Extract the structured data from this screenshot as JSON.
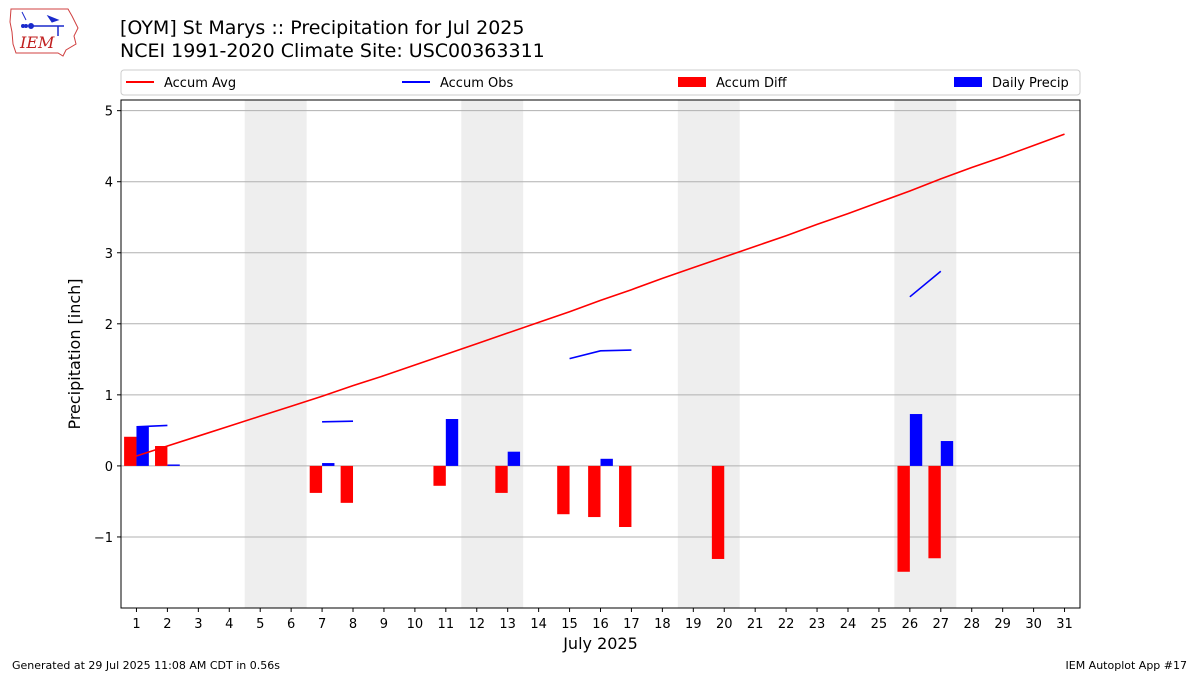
{
  "header": {
    "title_line1": "[OYM] St Marys :: Precipitation for Jul 2025",
    "title_line2": "NCEI 1991-2020 Climate Site: USC00363311",
    "logo_text": "IEM"
  },
  "footer": {
    "left": "Generated at 29 Jul 2025 11:08 AM CDT in 0.56s",
    "right": "IEM Autoplot App #17"
  },
  "colors": {
    "accum_avg": "#ff0000",
    "accum_obs": "#0000ff",
    "accum_diff": "#ff0000",
    "daily_precip": "#0000ff",
    "weekend_shade": "#eeeeee",
    "grid": "#b0b0b0"
  },
  "chart_data": {
    "type": "bar",
    "xlabel": "July 2025",
    "ylabel": "Precipitation [inch]",
    "xlim": [
      0.5,
      31.5
    ],
    "ylim": [
      -2.0,
      5.15
    ],
    "yticks": [
      -1,
      0,
      1,
      2,
      3,
      4,
      5
    ],
    "ytick_labels": [
      "−1",
      "0",
      "1",
      "2",
      "3",
      "4",
      "5"
    ],
    "x": [
      1,
      2,
      3,
      4,
      5,
      6,
      7,
      8,
      9,
      10,
      11,
      12,
      13,
      14,
      15,
      16,
      17,
      18,
      19,
      20,
      21,
      22,
      23,
      24,
      25,
      26,
      27,
      28,
      29,
      30,
      31
    ],
    "grid": "horizontal",
    "legend_position": "top",
    "legend": [
      "Accum Avg",
      "Accum Obs",
      "Accum Diff",
      "Daily Precip"
    ],
    "weekend_days": [
      [
        5,
        6
      ],
      [
        12,
        13
      ],
      [
        19,
        20
      ],
      [
        26,
        27
      ]
    ],
    "series": [
      {
        "name": "Accum Avg",
        "type": "line",
        "x": [
          1,
          2,
          3,
          4,
          5,
          6,
          7,
          8,
          9,
          10,
          11,
          12,
          13,
          14,
          15,
          16,
          17,
          18,
          19,
          20,
          21,
          22,
          23,
          24,
          25,
          26,
          27,
          28,
          29,
          30,
          31
        ],
        "values": [
          0.14,
          0.28,
          0.42,
          0.56,
          0.7,
          0.84,
          0.98,
          1.13,
          1.27,
          1.42,
          1.57,
          1.72,
          1.87,
          2.02,
          2.17,
          2.33,
          2.48,
          2.64,
          2.79,
          2.94,
          3.09,
          3.24,
          3.4,
          3.55,
          3.71,
          3.87,
          4.04,
          4.2,
          4.35,
          4.51,
          4.67
        ]
      },
      {
        "name": "Accum Obs",
        "type": "line",
        "segments": [
          {
            "x": [
              1,
              2
            ],
            "values": [
              0.55,
              0.57
            ]
          },
          {
            "x": [
              7,
              8
            ],
            "values": [
              0.62,
              0.63
            ]
          },
          {
            "x": [
              15,
              16,
              17
            ],
            "values": [
              1.51,
              1.62,
              1.63
            ]
          },
          {
            "x": [
              26,
              27
            ],
            "values": [
              2.38,
              2.74
            ]
          }
        ]
      },
      {
        "name": "Accum Diff",
        "type": "bar",
        "x": [
          1,
          2,
          7,
          8,
          11,
          13,
          15,
          16,
          17,
          20,
          26,
          27
        ],
        "values": [
          0.41,
          0.28,
          -0.38,
          -0.52,
          -0.28,
          -0.38,
          -0.68,
          -0.72,
          -0.86,
          -1.31,
          -1.49,
          -1.3
        ]
      },
      {
        "name": "Daily Precip",
        "type": "bar",
        "x": [
          1,
          2,
          7,
          11,
          13,
          16,
          26,
          27
        ],
        "values": [
          0.55,
          0.02,
          0.04,
          0.66,
          0.2,
          0.1,
          0.73,
          0.35
        ]
      }
    ]
  }
}
